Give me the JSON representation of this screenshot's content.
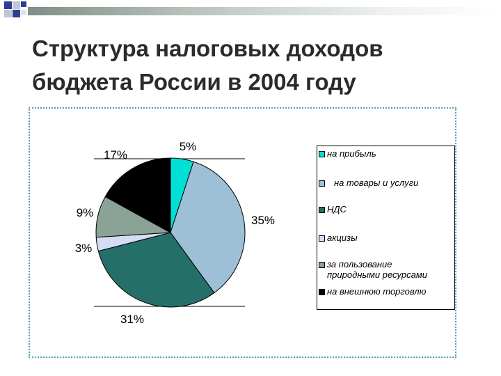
{
  "title": {
    "line1": "Структура налоговых доходов",
    "line2": "бюджета России в 2004 году"
  },
  "colors": {
    "na_pribyl": "#00e0d6",
    "tovary": "#9dc0d6",
    "nds": "#246f6a",
    "akcizy": "#d6dcf5",
    "prirodnye": "#8aa396",
    "vneshnyaya": "#000000",
    "frame": "#4f9fb3"
  },
  "chart_data": {
    "type": "pie",
    "start": "12 o'clock",
    "direction": "clockwise",
    "slices": [
      {
        "label": "на прибыль",
        "value": 5,
        "value_label": "5%",
        "color": "#00e0d6"
      },
      {
        "label": "на товары и услуги",
        "value": 35,
        "value_label": "35%",
        "color": "#9dc0d6"
      },
      {
        "label": "НДС",
        "value": 31,
        "value_label": "31%",
        "color": "#246f6a"
      },
      {
        "label": "акцизы",
        "value": 3,
        "value_label": "3%",
        "color": "#d6dcf5"
      },
      {
        "label": "за пользование природными ресурсами",
        "value": 9,
        "value_label": "9%",
        "color": "#8aa396"
      },
      {
        "label": "на внешнюю торговлю",
        "value": 17,
        "value_label": "17%",
        "color": "#000000"
      }
    ],
    "legend_position": "right"
  },
  "legend": [
    {
      "line1": "на прибыль",
      "line2": ""
    },
    {
      "line1": "на товары и услуги",
      "line2": ""
    },
    {
      "line1": "НДС",
      "line2": ""
    },
    {
      "line1": "акцизы",
      "line2": ""
    },
    {
      "line1": "за пользование",
      "line2": "природными ресурсами"
    },
    {
      "line1": "на внешнюю торговлю",
      "line2": ""
    }
  ]
}
